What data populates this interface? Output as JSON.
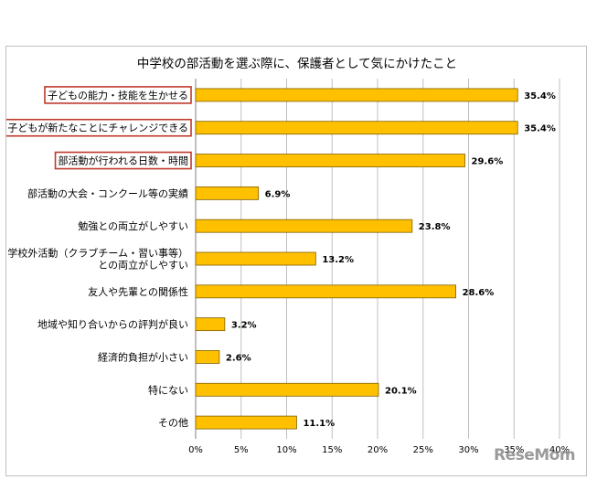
{
  "watermark": "ReseMom",
  "colors": {
    "bar": "#FFC000",
    "bar_stroke": "#7F6000",
    "highlight_box": "#C0392B",
    "grid": "#BFBFBF"
  },
  "chart_data": {
    "type": "bar",
    "orientation": "horizontal",
    "title": "中学校の部活動を選ぶ際に、保護者として気にかけたこと",
    "categories": [
      "子どもの能力・技能を生かせる",
      "子どもが新たなことにチャレンジできる",
      "部活動が行われる日数・時間",
      "部活動の大会・コンクール等の実績",
      "勉強との両立がしやすい",
      "学校外活動（クラブチーム・習い事等）\nとの両立がしやすい",
      "友人や先輩との関係性",
      "地域や知り合いからの評判が良い",
      "経済的負担が小さい",
      "特にない",
      "その他"
    ],
    "values": [
      35.4,
      35.4,
      29.6,
      6.9,
      23.8,
      13.2,
      28.6,
      3.2,
      2.6,
      20.1,
      11.1
    ],
    "value_labels": [
      "35.4%",
      "35.4%",
      "29.6%",
      "6.9%",
      "23.8%",
      "13.2%",
      "28.6%",
      "3.2%",
      "2.6%",
      "20.1%",
      "11.1%"
    ],
    "highlighted": [
      0,
      1,
      2
    ],
    "xlim": [
      0,
      40
    ],
    "xticks": [
      "0%",
      "5%",
      "10%",
      "15%",
      "20%",
      "25%",
      "30%",
      "35%",
      "40%"
    ],
    "grid": true
  }
}
